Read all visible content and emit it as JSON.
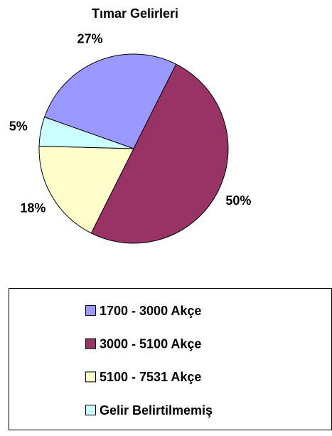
{
  "chart_data": {
    "type": "pie",
    "title": "Tımar Gelirleri",
    "categories": [
      "1700 - 3000 Akçe",
      "3000 - 5100 Akçe",
      "5100 - 7531 Akçe",
      "Gelir Belirtilmemiş"
    ],
    "values": [
      27,
      50,
      18,
      5
    ],
    "value_labels": [
      "27%",
      "50%",
      "18%",
      "5%"
    ],
    "colors": [
      "#9999ff",
      "#993366",
      "#ffffcc",
      "#ccffff"
    ],
    "legend": "bottom"
  }
}
